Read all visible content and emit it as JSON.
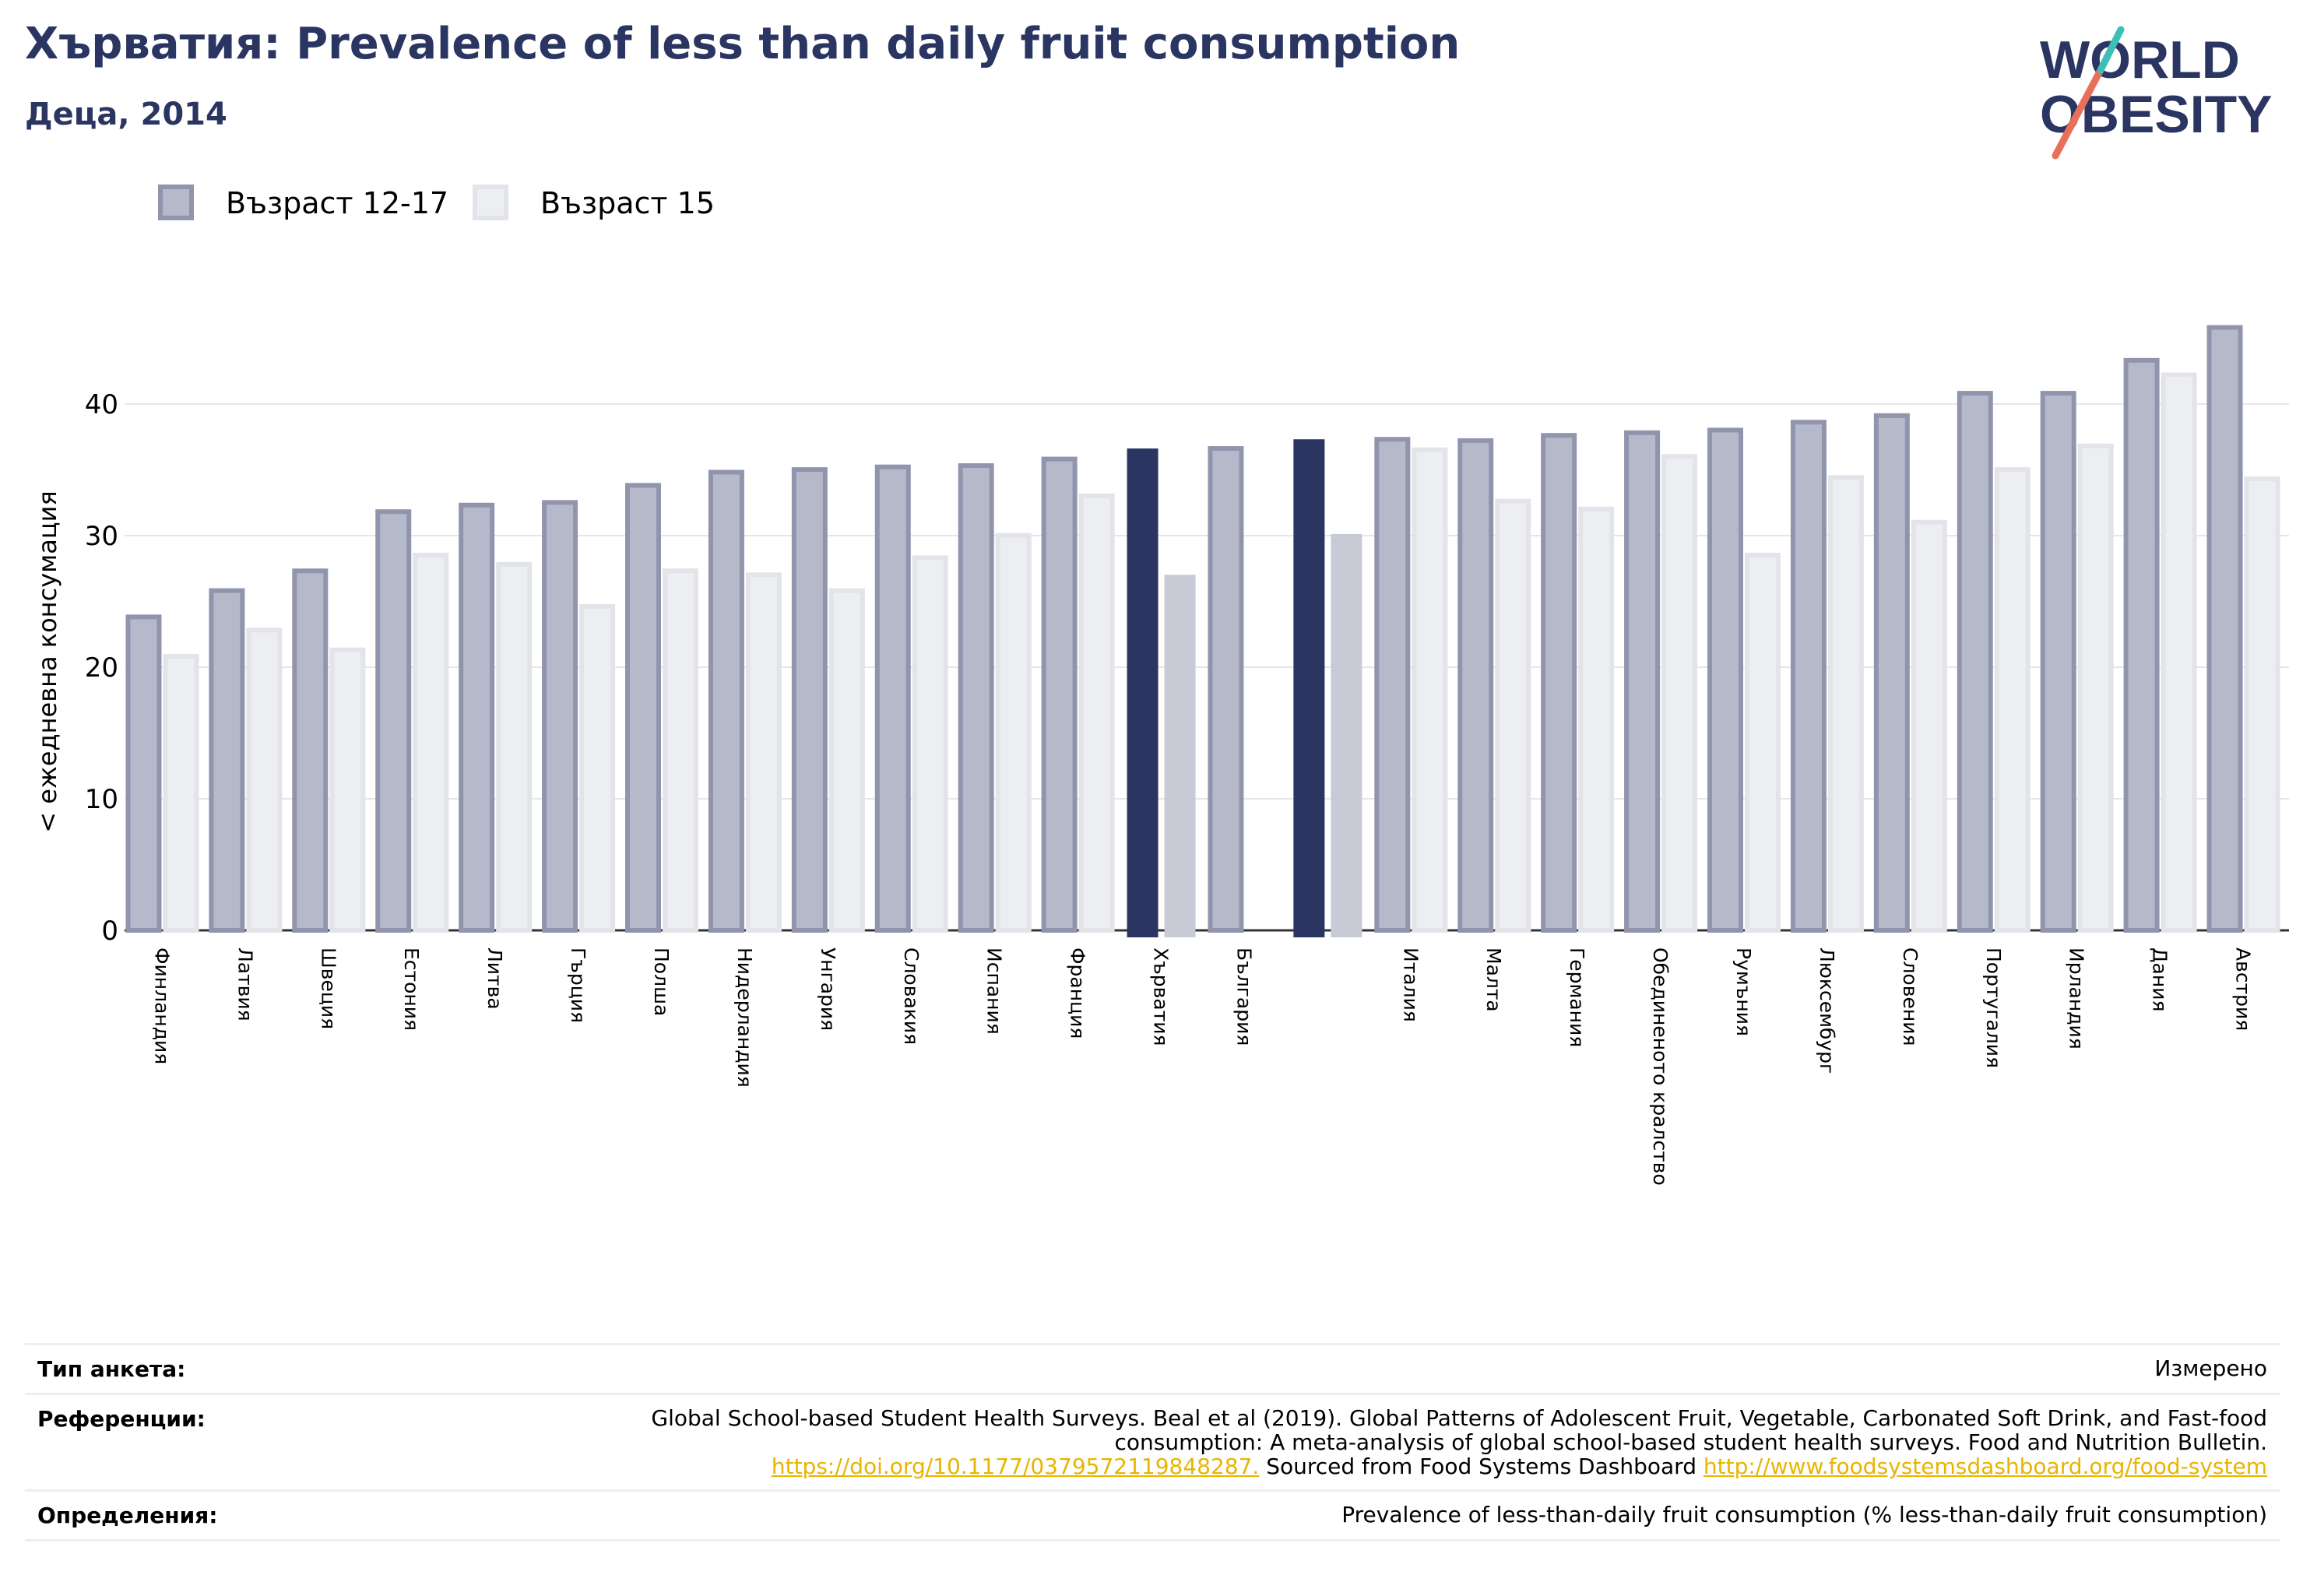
{
  "title": "Хърватия: Prevalence of less than daily fruit consumption",
  "subtitle": "Деца, 2014",
  "logo": {
    "line1": "WORLD",
    "line2": "OBESITY",
    "colors": {
      "text": "#2a3561",
      "slash_red": "#e8705a",
      "slash_teal": "#3bbfb6"
    }
  },
  "chart_data": {
    "type": "bar",
    "ylabel": "< ежедневна консумация",
    "ylim": [
      0,
      48
    ],
    "yticks": [
      0,
      10,
      20,
      30,
      40
    ],
    "grid": true,
    "legend_placement": "top-left",
    "series": [
      {
        "name": "Възраст 12-17",
        "color": "#b6b9c9",
        "edge": "#9095ad",
        "values": [
          24,
          26,
          27.5,
          32,
          32.5,
          32.7,
          34,
          35,
          35.2,
          35.4,
          35.5,
          36,
          36.8,
          36.8,
          37.5,
          37.5,
          37.4,
          37.8,
          38,
          38.2,
          38.8,
          39.3,
          41,
          41,
          43.5,
          46
        ]
      },
      {
        "name": "Възраст 15",
        "color": "#eceef2",
        "edge": "#e2e4ea",
        "values": [
          21,
          23,
          21.5,
          28.7,
          28,
          24.8,
          27.5,
          27.2,
          26,
          28.5,
          30.2,
          33.2,
          27.2,
          null,
          30.3,
          36.7,
          32.8,
          32.2,
          36.2,
          28.7,
          34.6,
          31.2,
          35.2,
          37,
          42.4,
          34.5
        ]
      }
    ],
    "categories": [
      "Финландия",
      "Латвия",
      "Швеция",
      "Естония",
      "Литва",
      "Гърция",
      "Полша",
      "Нидерландия",
      "Унгария",
      "Словакия",
      "Испания",
      "Франция",
      "Хърватия",
      "България",
      "",
      "Италия",
      "Малта",
      "Германия",
      "Обединеното кралство",
      "Румъния",
      "Люксембург",
      "Словения",
      "Португалия",
      "Ирландия",
      "Дания",
      "Австрия"
    ],
    "highlight": {
      "indices": [
        12,
        14
      ],
      "color_primary": "#2a3561",
      "color_secondary": "#c8cad6"
    }
  },
  "info": {
    "survey_label": "Тип анкета:",
    "survey_value": "Измерено",
    "refs_label": "Референции:",
    "refs_text": "Global School-based Student Health Surveys. Beal et al (2019). Global Patterns of Adolescent Fruit, Vegetable, Carbonated Soft Drink, and Fast-food consumption: A meta-analysis of global school-based student health surveys. Food and Nutrition Bulletin.",
    "refs_link1": "https://doi.org/10.1177/0379572119848287.",
    "refs_mid": " Sourced from Food Systems Dashboard ",
    "refs_link2": "http://www.foodsystemsdashboard.org/food-system",
    "defs_label": "Определения:",
    "defs_value": "Prevalence of less-than-daily fruit consumption (% less-than-daily fruit consumption)"
  }
}
